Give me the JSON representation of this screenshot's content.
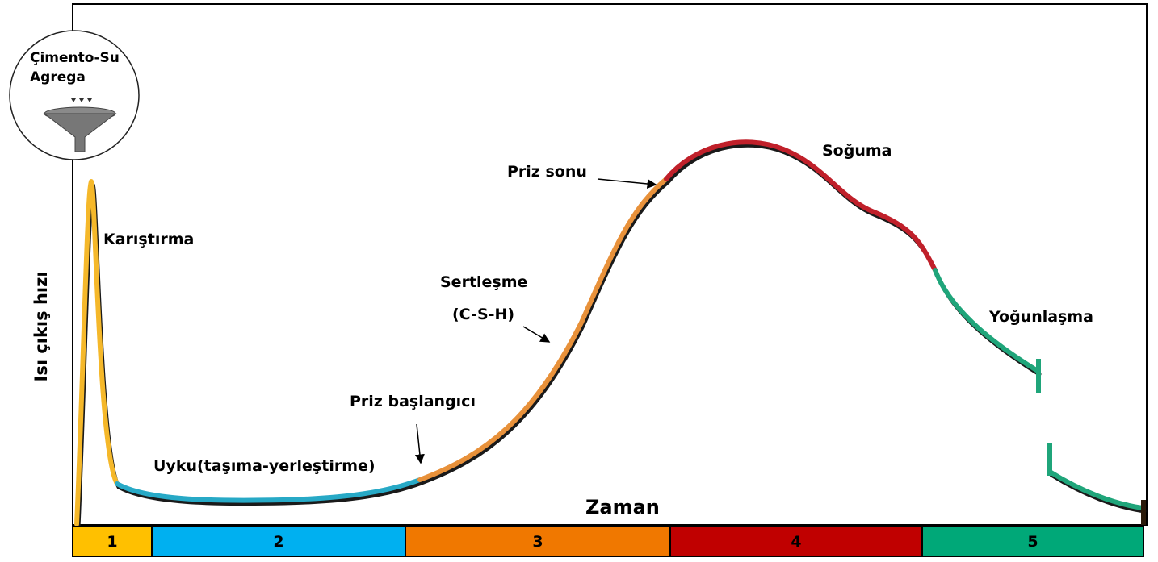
{
  "diagram": {
    "y_axis_label": "Isı çıkış hızı",
    "x_axis_label": "Zaman",
    "inputs": [
      "Çimento-Su",
      "Agrega"
    ],
    "annotations": {
      "mixing": "Karıştırma",
      "dormant": "Uyku(taşıma-yerleştirme)",
      "initial_set": "Priz başlangıcı",
      "hardening": "Sertleşme",
      "hardening_note": "(C-S-H)",
      "final_set": "Priz sonu",
      "cooling": "Soğuma",
      "densification": "Yoğunlaşma"
    },
    "stages": [
      "1",
      "2",
      "3",
      "4",
      "5"
    ]
  }
}
